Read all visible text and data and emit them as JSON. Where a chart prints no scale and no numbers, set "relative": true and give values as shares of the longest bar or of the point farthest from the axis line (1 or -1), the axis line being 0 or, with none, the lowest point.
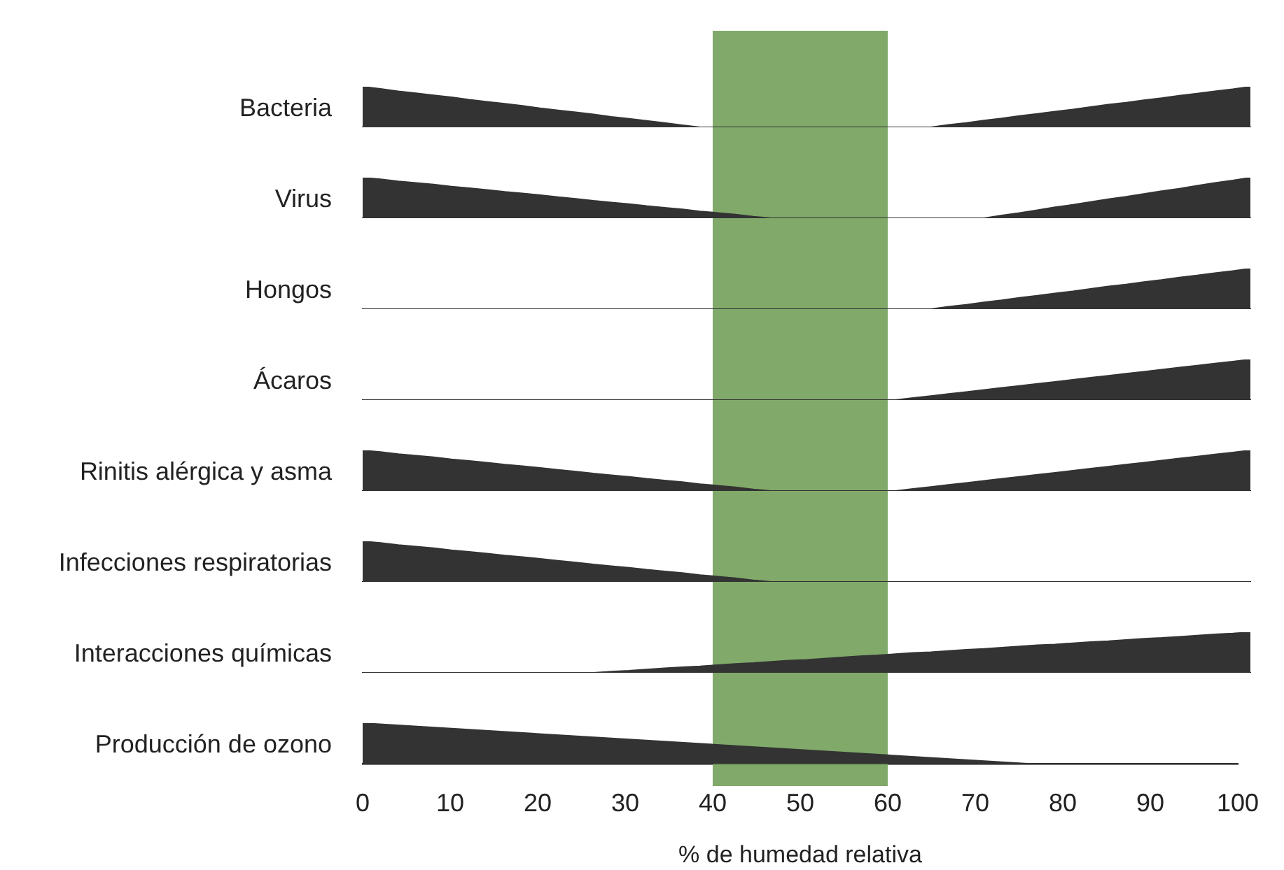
{
  "chart_data": [
    {
      "type": "area",
      "ylabel": "Bacteria",
      "relative": true,
      "tick_labels": false,
      "color": "#333333",
      "categories": [
        null,
        null,
        null,
        null,
        null,
        null,
        null,
        null,
        null,
        null,
        null,
        null,
        null,
        null,
        null,
        null,
        null,
        null,
        null,
        null,
        null,
        null,
        null,
        null,
        null,
        null,
        null,
        null,
        null,
        null,
        null,
        null,
        null,
        null,
        null,
        null,
        null,
        null,
        null,
        null,
        null,
        null,
        null,
        null,
        null,
        null,
        null,
        null,
        null,
        null,
        null
      ],
      "values": [
        1,
        0.95,
        0.89,
        0.84,
        0.79,
        0.74,
        0.68,
        0.63,
        0.58,
        0.53,
        0.47,
        0.42,
        0.37,
        0.32,
        0.26,
        0.21,
        0.16,
        0.11,
        0.05,
        0,
        0,
        0,
        0,
        0,
        0,
        0,
        0,
        0,
        0,
        0,
        0,
        0,
        0,
        0.06,
        0.11,
        0.17,
        0.22,
        0.28,
        0.33,
        0.39,
        0.44,
        0.5,
        0.56,
        0.61,
        0.67,
        0.72,
        0.78,
        0.83,
        0.89,
        0.94,
        1
      ]
    },
    {
      "type": "area",
      "ylabel": "Virus",
      "relative": true,
      "tick_labels": false,
      "color": "#333333",
      "categories": [
        null,
        null,
        null,
        null,
        null,
        null,
        null,
        null,
        null,
        null,
        null,
        null,
        null,
        null,
        null,
        null,
        null,
        null,
        null,
        null,
        null,
        null,
        null,
        null,
        null,
        null,
        null,
        null,
        null,
        null,
        null,
        null,
        null,
        null,
        null,
        null,
        null,
        null,
        null,
        null,
        null,
        null,
        null,
        null,
        null,
        null,
        null,
        null,
        null,
        null,
        null
      ],
      "values": [
        1,
        0.96,
        0.91,
        0.87,
        0.83,
        0.78,
        0.74,
        0.7,
        0.65,
        0.61,
        0.57,
        0.52,
        0.48,
        0.43,
        0.39,
        0.35,
        0.3,
        0.26,
        0.22,
        0.17,
        0.13,
        0.09,
        0.04,
        0,
        0,
        0,
        0,
        0,
        0,
        0,
        0,
        0,
        0,
        0,
        0,
        0,
        0.07,
        0.13,
        0.2,
        0.27,
        0.33,
        0.4,
        0.47,
        0.53,
        0.6,
        0.67,
        0.73,
        0.8,
        0.87,
        0.93,
        1
      ]
    },
    {
      "type": "area",
      "ylabel": "Hongos",
      "relative": true,
      "tick_labels": false,
      "color": "#333333",
      "categories": [
        null,
        null,
        null,
        null,
        null,
        null,
        null,
        null,
        null,
        null,
        null,
        null,
        null,
        null,
        null,
        null,
        null,
        null,
        null,
        null,
        null,
        null,
        null,
        null,
        null,
        null,
        null,
        null,
        null,
        null,
        null,
        null,
        null,
        null,
        null,
        null,
        null,
        null,
        null,
        null,
        null,
        null,
        null,
        null,
        null,
        null,
        null,
        null,
        null,
        null,
        null
      ],
      "values": [
        0,
        0,
        0,
        0,
        0,
        0,
        0,
        0,
        0,
        0,
        0,
        0,
        0,
        0,
        0,
        0,
        0,
        0,
        0,
        0,
        0,
        0,
        0,
        0,
        0,
        0,
        0,
        0,
        0,
        0,
        0,
        0,
        0,
        0.06,
        0.11,
        0.17,
        0.22,
        0.28,
        0.33,
        0.39,
        0.44,
        0.5,
        0.56,
        0.61,
        0.67,
        0.72,
        0.78,
        0.83,
        0.89,
        0.94,
        1
      ]
    },
    {
      "type": "area",
      "ylabel": "Ácaros",
      "relative": true,
      "tick_labels": false,
      "color": "#333333",
      "categories": [
        null,
        null,
        null,
        null,
        null,
        null,
        null,
        null,
        null,
        null,
        null,
        null,
        null,
        null,
        null,
        null,
        null,
        null,
        null,
        null,
        null,
        null,
        null,
        null,
        null,
        null,
        null,
        null,
        null,
        null,
        null,
        null,
        null,
        null,
        null,
        null,
        null,
        null,
        null,
        null,
        null,
        null,
        null,
        null,
        null,
        null,
        null,
        null,
        null,
        null,
        null
      ],
      "values": [
        0,
        0,
        0,
        0,
        0,
        0,
        0,
        0,
        0,
        0,
        0,
        0,
        0,
        0,
        0,
        0,
        0,
        0,
        0,
        0,
        0,
        0,
        0,
        0,
        0,
        0,
        0,
        0,
        0,
        0,
        0,
        0.05,
        0.1,
        0.15,
        0.2,
        0.25,
        0.3,
        0.35,
        0.4,
        0.45,
        0.5,
        0.55,
        0.6,
        0.65,
        0.7,
        0.75,
        0.8,
        0.85,
        0.9,
        0.95,
        1
      ]
    },
    {
      "type": "area",
      "ylabel": "Rinitis alérgica y asma",
      "relative": true,
      "tick_labels": false,
      "color": "#333333",
      "categories": [
        null,
        null,
        null,
        null,
        null,
        null,
        null,
        null,
        null,
        null,
        null,
        null,
        null,
        null,
        null,
        null,
        null,
        null,
        null,
        null,
        null,
        null,
        null,
        null,
        null,
        null,
        null,
        null,
        null,
        null,
        null,
        null,
        null,
        null,
        null,
        null,
        null,
        null,
        null,
        null,
        null,
        null,
        null,
        null,
        null,
        null,
        null,
        null,
        null,
        null,
        null
      ],
      "values": [
        1,
        0.96,
        0.91,
        0.87,
        0.83,
        0.78,
        0.74,
        0.7,
        0.65,
        0.61,
        0.57,
        0.52,
        0.48,
        0.43,
        0.39,
        0.35,
        0.3,
        0.26,
        0.22,
        0.17,
        0.13,
        0.09,
        0.04,
        0,
        0,
        0,
        0,
        0,
        0,
        0,
        0,
        0.05,
        0.1,
        0.15,
        0.2,
        0.25,
        0.3,
        0.35,
        0.4,
        0.45,
        0.5,
        0.55,
        0.6,
        0.65,
        0.7,
        0.75,
        0.8,
        0.85,
        0.9,
        0.95,
        1
      ]
    },
    {
      "type": "area",
      "ylabel": "Infecciones respiratorias",
      "relative": true,
      "tick_labels": false,
      "color": "#333333",
      "categories": [
        null,
        null,
        null,
        null,
        null,
        null,
        null,
        null,
        null,
        null,
        null,
        null,
        null,
        null,
        null,
        null,
        null,
        null,
        null,
        null,
        null,
        null,
        null,
        null,
        null,
        null,
        null,
        null,
        null,
        null,
        null,
        null,
        null,
        null,
        null,
        null,
        null,
        null,
        null,
        null,
        null,
        null,
        null,
        null,
        null,
        null,
        null,
        null,
        null,
        null,
        null
      ],
      "values": [
        1,
        0.96,
        0.91,
        0.87,
        0.83,
        0.78,
        0.74,
        0.7,
        0.65,
        0.61,
        0.57,
        0.52,
        0.48,
        0.43,
        0.39,
        0.35,
        0.3,
        0.26,
        0.22,
        0.17,
        0.13,
        0.09,
        0.04,
        0,
        0,
        0,
        0,
        0,
        0,
        0,
        0,
        0,
        0,
        0,
        0,
        0,
        0,
        0,
        0,
        0,
        0,
        0,
        0,
        0,
        0,
        0,
        0,
        0,
        0,
        0,
        0
      ]
    },
    {
      "type": "area",
      "ylabel": "Interacciones químicas",
      "relative": true,
      "tick_labels": false,
      "color": "#333333",
      "categories": [
        null,
        null,
        null,
        null,
        null,
        null,
        null,
        null,
        null,
        null,
        null,
        null,
        null,
        null,
        null,
        null,
        null,
        null,
        null,
        null,
        null,
        null,
        null,
        null,
        null,
        null,
        null,
        null,
        null,
        null,
        null,
        null,
        null,
        null,
        null,
        null,
        null,
        null,
        null,
        null,
        null,
        null,
        null,
        null,
        null,
        null,
        null,
        null,
        null,
        null,
        null
      ],
      "values": [
        0,
        0,
        0,
        0,
        0,
        0,
        0,
        0,
        0,
        0,
        0,
        0,
        0,
        0,
        0.03,
        0.05,
        0.08,
        0.11,
        0.14,
        0.16,
        0.19,
        0.22,
        0.24,
        0.27,
        0.3,
        0.32,
        0.35,
        0.38,
        0.41,
        0.43,
        0.46,
        0.49,
        0.51,
        0.54,
        0.57,
        0.59,
        0.62,
        0.65,
        0.68,
        0.7,
        0.73,
        0.76,
        0.78,
        0.81,
        0.84,
        0.86,
        0.89,
        0.92,
        0.95,
        0.97,
        1
      ]
    },
    {
      "type": "area",
      "ylabel": "Producción de ozono",
      "relative": true,
      "x": [
        0,
        76,
        100
      ],
      "values": [
        1,
        0,
        0
      ],
      "color": "#333333",
      "xlim": [
        0,
        100
      ],
      "xticks": [
        0,
        10,
        20,
        30,
        40,
        50,
        60,
        70,
        80,
        90,
        100
      ],
      "xlabel": "% de humedad relativa",
      "tick_labels": "x",
      "bands": [
        {
          "axis": "x",
          "from": 40,
          "to": 60,
          "color": "#6a9a50"
        }
      ]
    }
  ]
}
